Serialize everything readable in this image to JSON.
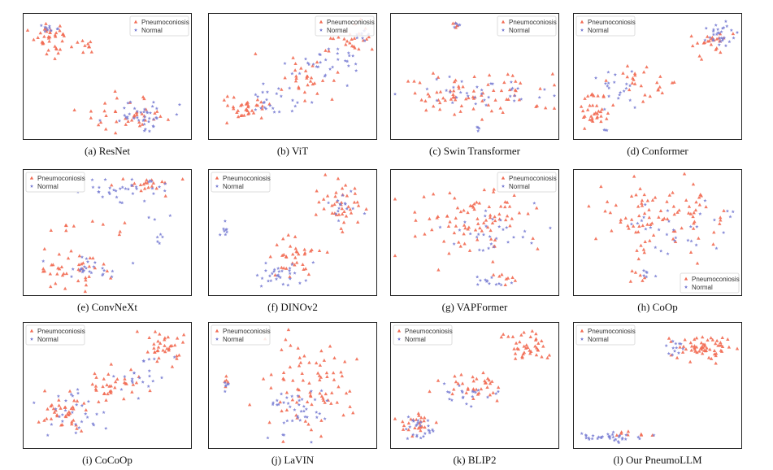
{
  "figure": {
    "description_type": "grid of t-SNE scatter plots",
    "colors": {
      "pneumoconiosis": "#f26b53",
      "normal": "#7b7fd4"
    },
    "legend": {
      "pneumoconiosis": "Pneumoconiosis",
      "normal": "Normal"
    }
  },
  "chart_data": [
    {
      "id": "a",
      "type": "scatter",
      "caption": "(a) ResNet",
      "legend_position": "top-right",
      "xlim": [
        0,
        100
      ],
      "ylim": [
        0,
        100
      ],
      "series": [
        {
          "name": "Pneumoconiosis",
          "clusters": [
            {
              "cx": 16,
              "cy": 80,
              "rx": 12,
              "ry": 14,
              "n": 40
            },
            {
              "cx": 38,
              "cy": 75,
              "rx": 4,
              "ry": 6,
              "n": 8
            },
            {
              "cx": 62,
              "cy": 18,
              "rx": 26,
              "ry": 13,
              "n": 40
            }
          ]
        },
        {
          "name": "Normal",
          "clusters": [
            {
              "cx": 15,
              "cy": 90,
              "rx": 8,
              "ry": 6,
              "n": 10
            },
            {
              "cx": 70,
              "cy": 20,
              "rx": 22,
              "ry": 12,
              "n": 40
            }
          ]
        }
      ]
    },
    {
      "id": "b",
      "type": "scatter",
      "caption": "(b) ViT",
      "legend_position": "top-right",
      "xlim": [
        0,
        100
      ],
      "ylim": [
        0,
        100
      ],
      "series": [
        {
          "name": "Pneumoconiosis",
          "clusters": [
            {
              "cx": 20,
              "cy": 22,
              "rx": 16,
              "ry": 10,
              "n": 35
            },
            {
              "cx": 55,
              "cy": 45,
              "rx": 20,
              "ry": 18,
              "n": 30
            },
            {
              "cx": 85,
              "cy": 80,
              "rx": 12,
              "ry": 14,
              "n": 25
            }
          ]
        },
        {
          "name": "Normal",
          "clusters": [
            {
              "cx": 40,
              "cy": 30,
              "rx": 18,
              "ry": 14,
              "n": 25
            },
            {
              "cx": 70,
              "cy": 60,
              "rx": 20,
              "ry": 18,
              "n": 30
            },
            {
              "cx": 92,
              "cy": 85,
              "rx": 5,
              "ry": 6,
              "n": 10
            }
          ]
        }
      ]
    },
    {
      "id": "c",
      "type": "scatter",
      "caption": "(c) Swin Transformer",
      "legend_position": "top-right",
      "xlim": [
        0,
        100
      ],
      "ylim": [
        0,
        100
      ],
      "series": [
        {
          "name": "Pneumoconiosis",
          "clusters": [
            {
              "cx": 38,
              "cy": 93,
              "rx": 3,
              "ry": 3,
              "n": 5
            },
            {
              "cx": 50,
              "cy": 35,
              "rx": 46,
              "ry": 18,
              "n": 75
            }
          ]
        },
        {
          "name": "Normal",
          "clusters": [
            {
              "cx": 39,
              "cy": 92,
              "rx": 3,
              "ry": 3,
              "n": 5
            },
            {
              "cx": 50,
              "cy": 35,
              "rx": 42,
              "ry": 14,
              "n": 35
            },
            {
              "cx": 52,
              "cy": 8,
              "rx": 2,
              "ry": 4,
              "n": 4
            }
          ]
        }
      ]
    },
    {
      "id": "d",
      "type": "scatter",
      "caption": "(d) Conformer",
      "legend_position": "top-left",
      "xlim": [
        0,
        100
      ],
      "ylim": [
        0,
        100
      ],
      "series": [
        {
          "name": "Pneumoconiosis",
          "clusters": [
            {
              "cx": 12,
              "cy": 20,
              "rx": 10,
              "ry": 14,
              "n": 35
            },
            {
              "cx": 40,
              "cy": 45,
              "rx": 22,
              "ry": 15,
              "n": 25
            },
            {
              "cx": 82,
              "cy": 80,
              "rx": 14,
              "ry": 12,
              "n": 25
            }
          ]
        },
        {
          "name": "Normal",
          "clusters": [
            {
              "cx": 25,
              "cy": 40,
              "rx": 15,
              "ry": 18,
              "n": 20
            },
            {
              "cx": 88,
              "cy": 85,
              "rx": 10,
              "ry": 9,
              "n": 30
            },
            {
              "cx": 18,
              "cy": 5,
              "rx": 3,
              "ry": 2,
              "n": 3
            }
          ]
        }
      ]
    },
    {
      "id": "e",
      "type": "scatter",
      "caption": "(e) ConvNeXt",
      "legend_position": "top-left",
      "xlim": [
        0,
        100
      ],
      "ylim": [
        0,
        100
      ],
      "series": [
        {
          "name": "Pneumoconiosis",
          "clusters": [
            {
              "cx": 30,
              "cy": 18,
              "rx": 26,
              "ry": 12,
              "n": 40
            },
            {
              "cx": 75,
              "cy": 88,
              "rx": 18,
              "ry": 8,
              "n": 20
            },
            {
              "cx": 40,
              "cy": 55,
              "rx": 30,
              "ry": 12,
              "n": 10
            }
          ]
        },
        {
          "name": "Normal",
          "clusters": [
            {
              "cx": 40,
              "cy": 20,
              "rx": 22,
              "ry": 10,
              "n": 25
            },
            {
              "cx": 60,
              "cy": 85,
              "rx": 34,
              "ry": 10,
              "n": 35
            },
            {
              "cx": 80,
              "cy": 55,
              "rx": 12,
              "ry": 20,
              "n": 8
            }
          ]
        }
      ]
    },
    {
      "id": "f",
      "type": "scatter",
      "caption": "(f) DINOv2",
      "legend_position": "top-left",
      "xlim": [
        0,
        100
      ],
      "ylim": [
        0,
        100
      ],
      "series": [
        {
          "name": "Pneumoconiosis",
          "clusters": [
            {
              "cx": 50,
              "cy": 30,
              "rx": 16,
              "ry": 20,
              "n": 35
            },
            {
              "cx": 78,
              "cy": 72,
              "rx": 14,
              "ry": 18,
              "n": 40
            }
          ]
        },
        {
          "name": "Normal",
          "clusters": [
            {
              "cx": 8,
              "cy": 52,
              "rx": 3,
              "ry": 6,
              "n": 8
            },
            {
              "cx": 42,
              "cy": 15,
              "rx": 14,
              "ry": 10,
              "n": 30
            },
            {
              "cx": 80,
              "cy": 70,
              "rx": 10,
              "ry": 14,
              "n": 15
            }
          ]
        }
      ]
    },
    {
      "id": "g",
      "type": "scatter",
      "caption": "(g) VAPFormer",
      "legend_position": "top-right",
      "xlim": [
        0,
        100
      ],
      "ylim": [
        0,
        100
      ],
      "series": [
        {
          "name": "Pneumoconiosis",
          "clusters": [
            {
              "cx": 48,
              "cy": 58,
              "rx": 40,
              "ry": 30,
              "n": 85
            },
            {
              "cx": 68,
              "cy": 12,
              "rx": 10,
              "ry": 6,
              "n": 8
            }
          ]
        },
        {
          "name": "Normal",
          "clusters": [
            {
              "cx": 55,
              "cy": 50,
              "rx": 35,
              "ry": 28,
              "n": 30
            },
            {
              "cx": 60,
              "cy": 10,
              "rx": 14,
              "ry": 5,
              "n": 12
            }
          ]
        }
      ]
    },
    {
      "id": "h",
      "type": "scatter",
      "caption": "(h) CoOp",
      "legend_position": "bottom-right",
      "xlim": [
        0,
        100
      ],
      "ylim": [
        0,
        100
      ],
      "series": [
        {
          "name": "Pneumoconiosis",
          "clusters": [
            {
              "cx": 50,
              "cy": 62,
              "rx": 42,
              "ry": 28,
              "n": 90
            },
            {
              "cx": 38,
              "cy": 12,
              "rx": 6,
              "ry": 6,
              "n": 6
            }
          ]
        },
        {
          "name": "Normal",
          "clusters": [
            {
              "cx": 60,
              "cy": 55,
              "rx": 30,
              "ry": 20,
              "n": 30
            },
            {
              "cx": 45,
              "cy": 14,
              "rx": 6,
              "ry": 4,
              "n": 6
            }
          ]
        }
      ]
    },
    {
      "id": "i",
      "type": "scatter",
      "caption": "(i) CoCoOp",
      "legend_position": "top-left",
      "xlim": [
        0,
        100
      ],
      "ylim": [
        0,
        100
      ],
      "series": [
        {
          "name": "Pneumoconiosis",
          "clusters": [
            {
              "cx": 25,
              "cy": 25,
              "rx": 20,
              "ry": 16,
              "n": 40
            },
            {
              "cx": 55,
              "cy": 50,
              "rx": 20,
              "ry": 16,
              "n": 35
            },
            {
              "cx": 85,
              "cy": 82,
              "rx": 12,
              "ry": 12,
              "n": 35
            }
          ]
        },
        {
          "name": "Normal",
          "clusters": [
            {
              "cx": 30,
              "cy": 28,
              "rx": 20,
              "ry": 18,
              "n": 30
            },
            {
              "cx": 70,
              "cy": 55,
              "rx": 20,
              "ry": 18,
              "n": 20
            }
          ]
        }
      ]
    },
    {
      "id": "j",
      "type": "scatter",
      "caption": "(j) LaVIN",
      "legend_position": "top-left",
      "xlim": [
        0,
        100
      ],
      "ylim": [
        0,
        100
      ],
      "series": [
        {
          "name": "Pneumoconiosis",
          "clusters": [
            {
              "cx": 62,
              "cy": 50,
              "rx": 30,
              "ry": 38,
              "n": 80
            },
            {
              "cx": 10,
              "cy": 52,
              "rx": 3,
              "ry": 7,
              "n": 5
            }
          ]
        },
        {
          "name": "Normal",
          "clusters": [
            {
              "cx": 55,
              "cy": 30,
              "rx": 26,
              "ry": 24,
              "n": 40
            },
            {
              "cx": 10,
              "cy": 50,
              "rx": 3,
              "ry": 7,
              "n": 6
            }
          ]
        }
      ]
    },
    {
      "id": "k",
      "type": "scatter",
      "caption": "(k) BLIP2",
      "legend_position": "top-left",
      "xlim": [
        0,
        100
      ],
      "ylim": [
        0,
        100
      ],
      "series": [
        {
          "name": "Pneumoconiosis",
          "clusters": [
            {
              "cx": 15,
              "cy": 18,
              "rx": 10,
              "ry": 10,
              "n": 25
            },
            {
              "cx": 50,
              "cy": 50,
              "rx": 18,
              "ry": 12,
              "n": 35
            },
            {
              "cx": 82,
              "cy": 82,
              "rx": 14,
              "ry": 12,
              "n": 40
            }
          ]
        },
        {
          "name": "Normal",
          "clusters": [
            {
              "cx": 18,
              "cy": 15,
              "rx": 12,
              "ry": 10,
              "n": 25
            },
            {
              "cx": 45,
              "cy": 45,
              "rx": 14,
              "ry": 10,
              "n": 20
            }
          ]
        }
      ]
    },
    {
      "id": "l",
      "type": "scatter",
      "caption": "(l) Our PneumoLLM",
      "legend_position": "top-left",
      "xlim": [
        0,
        100
      ],
      "ylim": [
        0,
        100
      ],
      "series": [
        {
          "name": "Pneumoconiosis",
          "clusters": [
            {
              "cx": 78,
              "cy": 82,
              "rx": 18,
              "ry": 10,
              "n": 60
            },
            {
              "cx": 30,
              "cy": 10,
              "rx": 16,
              "ry": 4,
              "n": 8
            }
          ]
        },
        {
          "name": "Normal",
          "clusters": [
            {
              "cx": 22,
              "cy": 7,
              "rx": 22,
              "ry": 4,
              "n": 35
            },
            {
              "cx": 62,
              "cy": 82,
              "rx": 8,
              "ry": 6,
              "n": 12
            }
          ]
        }
      ]
    }
  ]
}
